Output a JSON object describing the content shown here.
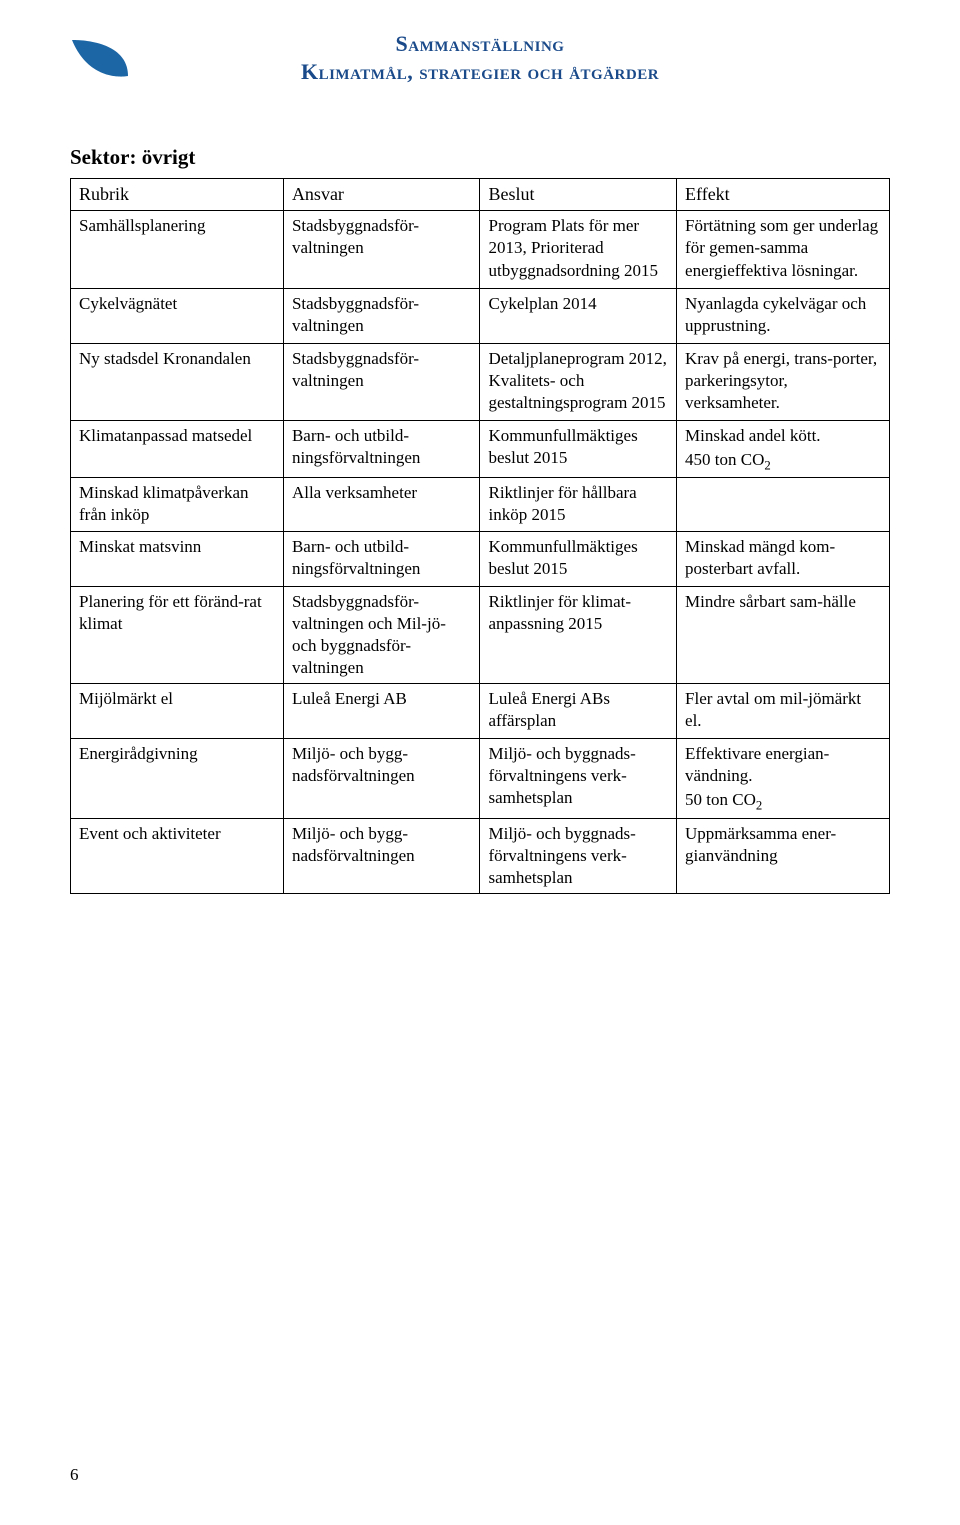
{
  "header": {
    "title_line1": "Sammanställning",
    "title_line2": "Klimatmål, strategier och åtgärder",
    "title_color": "#1a4a8a",
    "leaf_color": "#1c66a6"
  },
  "page_number": "6",
  "sector_heading": "Sektor: övrigt",
  "table": {
    "columns": [
      "Rubrik",
      "Ansvar",
      "Beslut",
      "Effekt"
    ],
    "column_widths_pct": [
      26,
      24,
      24,
      26
    ],
    "border_color": "#000000",
    "font_size_pt": 13,
    "header_font_size_pt": 14,
    "rows": [
      {
        "rubrik": "Samhällsplanering",
        "ansvar": "Stadsbyggnadsför-valtningen",
        "beslut": "Program Plats för mer 2013, Prioriterad utbyggnadsordning 2015",
        "effekt": [
          "Förtätning som ger underlag för gemen-samma energieffektiva lösningar."
        ]
      },
      {
        "rubrik": "Cykelvägnätet",
        "ansvar": "Stadsbyggnadsför-valtningen",
        "beslut": "Cykelplan 2014",
        "effekt": [
          "Nyanlagda cykelvägar och upprustning."
        ]
      },
      {
        "rubrik": "Ny stadsdel Kronandalen",
        "ansvar": "Stadsbyggnadsför-valtningen",
        "beslut": "Detaljplaneprogram 2012, Kvalitets- och gestaltningsprogram 2015",
        "effekt": [
          "Krav på energi, trans-porter, parkeringsytor, verksamheter."
        ]
      },
      {
        "rubrik": "Klimatanpassad matsedel",
        "ansvar": "Barn- och utbild-ningsförvaltningen",
        "beslut": "Kommunfullmäktiges beslut 2015",
        "effekt": [
          "Minskad andel kött.",
          "450 ton CO<sub2>2</sub2>"
        ]
      },
      {
        "rubrik": "Minskad klimatpåverkan från inköp",
        "ansvar": "Alla verksamheter",
        "beslut": "Riktlinjer för hållbara inköp 2015",
        "effekt": []
      },
      {
        "rubrik": "Minskat matsvinn",
        "ansvar": "Barn- och utbild-ningsförvaltningen",
        "beslut": "Kommunfullmäktiges beslut 2015",
        "effekt": [
          "Minskad mängd kom-posterbart avfall."
        ]
      },
      {
        "rubrik": "Planering för ett föränd-rat klimat",
        "ansvar": "Stadsbyggnadsför-valtningen och Mil-jö- och byggnadsför-valtningen",
        "beslut": "Riktlinjer för klimat-anpassning 2015",
        "effekt": [
          "Mindre sårbart sam-hälle"
        ]
      },
      {
        "rubrik": "Mijölmärkt el",
        "ansvar": "Luleå Energi AB",
        "beslut": "Luleå Energi ABs affärsplan",
        "effekt": [
          "Fler avtal om mil-jömärkt el."
        ]
      },
      {
        "rubrik": "Energirådgivning",
        "ansvar": "Miljö- och bygg-nadsförvaltningen",
        "beslut": "Miljö- och byggnads-förvaltningens verk-samhetsplan",
        "effekt": [
          "Effektivare energian-vändning.",
          "50 ton CO<sub2>2</sub2>"
        ]
      },
      {
        "rubrik": "Event och aktiviteter",
        "ansvar": "Miljö- och bygg-nadsförvaltningen",
        "beslut": "Miljö- och byggnads-förvaltningens verk-samhetsplan",
        "effekt": [
          "Uppmärksamma ener-gianvändning"
        ]
      }
    ]
  }
}
